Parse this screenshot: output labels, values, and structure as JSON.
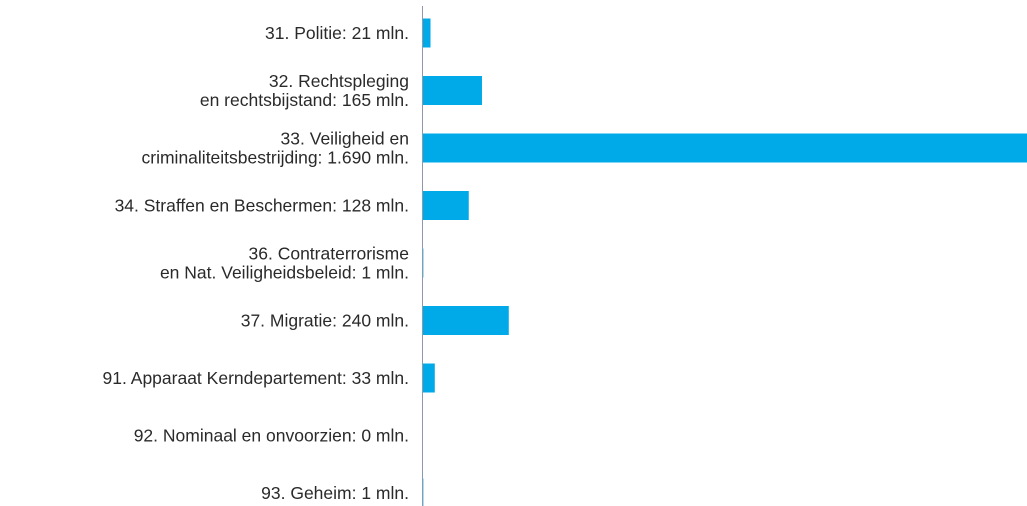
{
  "chart_data": {
    "type": "bar",
    "orientation": "horizontal",
    "title": "",
    "xlabel": "",
    "ylabel": "",
    "unit": "mln.",
    "grid": false,
    "legend": "none",
    "bar_color": "#00a9e8",
    "axis_color": "#8a9aa8",
    "xlim": [
      0,
      1690
    ],
    "categories": [
      [
        "31. Politie: 21 mln."
      ],
      [
        "32. Rechtspleging",
        "en rechtsbijstand:  165 mln."
      ],
      [
        "33. Veiligheid en",
        "criminaliteitsbestrijding:  1.690 mln."
      ],
      [
        "34. Straffen en Beschermen:  128 mln."
      ],
      [
        "36. Contraterrorisme",
        "en Nat. Veiligheidsbeleid:  1 mln."
      ],
      [
        "37. Migratie: 240  mln."
      ],
      [
        "91. Apparaat Kerndepartement: 33 mln."
      ],
      [
        "92. Nominaal en onvoorzien: 0 mln."
      ],
      [
        "93. Geheim: 1 mln."
      ]
    ],
    "values": [
      21,
      165,
      1690,
      128,
      1,
      240,
      33,
      0,
      1
    ]
  }
}
